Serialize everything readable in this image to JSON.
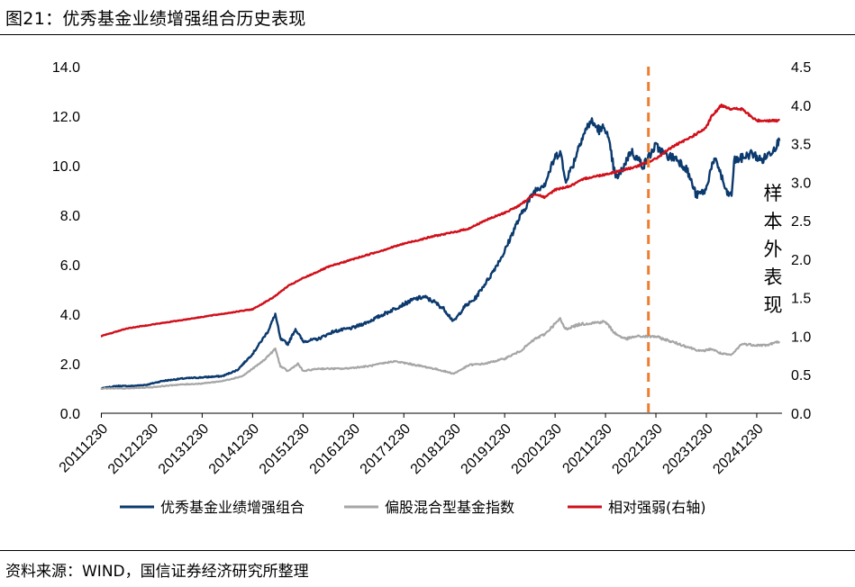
{
  "figure": {
    "title": "图21：优秀基金业绩增强组合历史表现",
    "source": "资料来源：WIND，国信证券经济研究所整理"
  },
  "chart_data": {
    "type": "line",
    "x_tick_labels": [
      "20111230",
      "20121230",
      "20131230",
      "20141230",
      "20151230",
      "20161230",
      "20171230",
      "20181230",
      "20191230",
      "20201230",
      "20211230",
      "20221230",
      "20231230",
      "20241230"
    ],
    "x_range": [
      "2011-12-30",
      "2025-06-30"
    ],
    "y_left": {
      "ticks": [
        "0.0",
        "2.0",
        "4.0",
        "6.0",
        "8.0",
        "10.0",
        "12.0",
        "14.0"
      ],
      "range": [
        0,
        14
      ]
    },
    "y_right": {
      "ticks": [
        "0.0",
        "0.5",
        "1.0",
        "1.5",
        "2.0",
        "2.5",
        "3.0",
        "3.5",
        "4.0",
        "4.5"
      ],
      "range": [
        0,
        4.5
      ]
    },
    "grid": false,
    "legend_position": "bottom",
    "series": [
      {
        "name": "优秀基金业绩增强组合",
        "axis": "left",
        "color": "#0b3a6e",
        "points": [
          [
            2011.99,
            1.0
          ],
          [
            2012.3,
            1.1
          ],
          [
            2012.6,
            1.1
          ],
          [
            2012.9,
            1.15
          ],
          [
            2013.2,
            1.3
          ],
          [
            2013.6,
            1.4
          ],
          [
            2014.0,
            1.45
          ],
          [
            2014.4,
            1.5
          ],
          [
            2014.7,
            1.75
          ],
          [
            2015.0,
            2.4
          ],
          [
            2015.3,
            3.3
          ],
          [
            2015.45,
            4.0
          ],
          [
            2015.55,
            3.0
          ],
          [
            2015.7,
            2.8
          ],
          [
            2015.85,
            3.4
          ],
          [
            2016.0,
            2.9
          ],
          [
            2016.3,
            3.0
          ],
          [
            2016.6,
            3.3
          ],
          [
            2016.99,
            3.45
          ],
          [
            2017.3,
            3.7
          ],
          [
            2017.6,
            4.0
          ],
          [
            2017.99,
            4.4
          ],
          [
            2018.2,
            4.6
          ],
          [
            2018.4,
            4.7
          ],
          [
            2018.6,
            4.5
          ],
          [
            2018.8,
            4.2
          ],
          [
            2018.99,
            3.7
          ],
          [
            2019.2,
            4.3
          ],
          [
            2019.4,
            4.6
          ],
          [
            2019.7,
            5.5
          ],
          [
            2019.99,
            6.5
          ],
          [
            2020.2,
            7.5
          ],
          [
            2020.4,
            8.3
          ],
          [
            2020.6,
            9.0
          ],
          [
            2020.8,
            9.3
          ],
          [
            2020.99,
            10.3
          ],
          [
            2021.1,
            10.6
          ],
          [
            2021.2,
            9.4
          ],
          [
            2021.35,
            10.0
          ],
          [
            2021.5,
            11.0
          ],
          [
            2021.7,
            11.8
          ],
          [
            2021.9,
            11.4
          ],
          [
            2021.99,
            11.6
          ],
          [
            2022.1,
            10.6
          ],
          [
            2022.2,
            9.5
          ],
          [
            2022.3,
            9.7
          ],
          [
            2022.5,
            10.6
          ],
          [
            2022.75,
            10.0
          ],
          [
            2022.99,
            10.8
          ],
          [
            2023.2,
            10.4
          ],
          [
            2023.4,
            10.3
          ],
          [
            2023.6,
            9.9
          ],
          [
            2023.8,
            8.8
          ],
          [
            2023.99,
            9.0
          ],
          [
            2024.1,
            10.0
          ],
          [
            2024.2,
            10.2
          ],
          [
            2024.4,
            8.9
          ],
          [
            2024.5,
            8.8
          ],
          [
            2024.55,
            10.2
          ],
          [
            2024.7,
            10.3
          ],
          [
            2024.9,
            10.5
          ],
          [
            2025.1,
            10.2
          ],
          [
            2025.3,
            10.6
          ],
          [
            2025.45,
            11.0
          ]
        ]
      },
      {
        "name": "偏股混合型基金指数",
        "axis": "left",
        "color": "#a6a6a6",
        "points": [
          [
            2011.99,
            1.0
          ],
          [
            2012.5,
            1.0
          ],
          [
            2012.99,
            1.05
          ],
          [
            2013.5,
            1.15
          ],
          [
            2013.99,
            1.2
          ],
          [
            2014.4,
            1.3
          ],
          [
            2014.8,
            1.5
          ],
          [
            2015.2,
            2.1
          ],
          [
            2015.45,
            2.6
          ],
          [
            2015.55,
            1.9
          ],
          [
            2015.7,
            1.7
          ],
          [
            2015.9,
            2.0
          ],
          [
            2016.0,
            1.7
          ],
          [
            2016.3,
            1.8
          ],
          [
            2016.8,
            1.8
          ],
          [
            2017.3,
            1.9
          ],
          [
            2017.8,
            2.1
          ],
          [
            2018.1,
            2.0
          ],
          [
            2018.6,
            1.8
          ],
          [
            2018.99,
            1.6
          ],
          [
            2019.3,
            1.95
          ],
          [
            2019.6,
            2.0
          ],
          [
            2019.99,
            2.2
          ],
          [
            2020.3,
            2.5
          ],
          [
            2020.6,
            3.0
          ],
          [
            2020.8,
            3.2
          ],
          [
            2020.99,
            3.6
          ],
          [
            2021.1,
            3.8
          ],
          [
            2021.2,
            3.4
          ],
          [
            2021.5,
            3.6
          ],
          [
            2021.99,
            3.7
          ],
          [
            2022.2,
            3.2
          ],
          [
            2022.4,
            3.0
          ],
          [
            2022.6,
            3.1
          ],
          [
            2022.99,
            3.1
          ],
          [
            2023.3,
            2.9
          ],
          [
            2023.6,
            2.7
          ],
          [
            2023.9,
            2.5
          ],
          [
            2024.1,
            2.6
          ],
          [
            2024.3,
            2.4
          ],
          [
            2024.5,
            2.35
          ],
          [
            2024.7,
            2.8
          ],
          [
            2024.99,
            2.75
          ],
          [
            2025.2,
            2.75
          ],
          [
            2025.45,
            2.9
          ]
        ]
      },
      {
        "name": "相对强弱(右轴)",
        "axis": "right",
        "color": "#d0101b",
        "points": [
          [
            2011.99,
            1.0
          ],
          [
            2012.5,
            1.1
          ],
          [
            2012.99,
            1.15
          ],
          [
            2013.5,
            1.2
          ],
          [
            2013.99,
            1.25
          ],
          [
            2014.5,
            1.3
          ],
          [
            2015.0,
            1.35
          ],
          [
            2015.4,
            1.5
          ],
          [
            2015.7,
            1.65
          ],
          [
            2015.99,
            1.75
          ],
          [
            2016.5,
            1.9
          ],
          [
            2016.99,
            2.0
          ],
          [
            2017.5,
            2.1
          ],
          [
            2017.99,
            2.2
          ],
          [
            2018.3,
            2.25
          ],
          [
            2018.6,
            2.3
          ],
          [
            2018.99,
            2.35
          ],
          [
            2019.3,
            2.4
          ],
          [
            2019.6,
            2.5
          ],
          [
            2019.99,
            2.6
          ],
          [
            2020.3,
            2.7
          ],
          [
            2020.6,
            2.85
          ],
          [
            2020.8,
            2.8
          ],
          [
            2020.99,
            2.9
          ],
          [
            2021.3,
            2.95
          ],
          [
            2021.6,
            3.05
          ],
          [
            2021.99,
            3.1
          ],
          [
            2022.3,
            3.15
          ],
          [
            2022.6,
            3.2
          ],
          [
            2022.99,
            3.3
          ],
          [
            2023.3,
            3.45
          ],
          [
            2023.6,
            3.55
          ],
          [
            2023.99,
            3.7
          ],
          [
            2024.1,
            3.85
          ],
          [
            2024.3,
            4.0
          ],
          [
            2024.5,
            3.95
          ],
          [
            2024.7,
            3.95
          ],
          [
            2024.99,
            3.8
          ],
          [
            2025.2,
            3.8
          ],
          [
            2025.45,
            3.8
          ]
        ]
      }
    ],
    "annotations": [
      {
        "type": "vline",
        "x": 2022.85,
        "color": "#ed7d31",
        "label": "样本外表现"
      }
    ]
  }
}
